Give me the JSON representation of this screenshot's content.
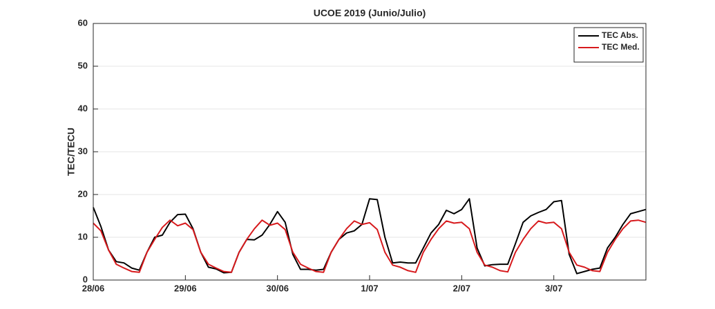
{
  "chart_data": {
    "type": "line",
    "title": "UCOE 2019 (Junio/Julio)",
    "ylabel": "TEC/TECU",
    "x": [
      0,
      0.08333,
      0.16667,
      0.25,
      0.33333,
      0.41667,
      0.5,
      0.58333,
      0.66667,
      0.75,
      0.83333,
      0.91667,
      1,
      1.08333,
      1.16667,
      1.25,
      1.33333,
      1.41667,
      1.5,
      1.58333,
      1.66667,
      1.75,
      1.83333,
      1.91667,
      2,
      2.08333,
      2.16667,
      2.25,
      2.33333,
      2.41667,
      2.5,
      2.58333,
      2.66667,
      2.75,
      2.83333,
      2.91667,
      3,
      3.08333,
      3.16667,
      3.25,
      3.33333,
      3.41667,
      3.5,
      3.58333,
      3.66667,
      3.75,
      3.83333,
      3.91667,
      4,
      4.08333,
      4.16667,
      4.25,
      4.33333,
      4.41667,
      4.5,
      4.58333,
      4.66667,
      4.75,
      4.83333,
      4.91667,
      5,
      5.08333,
      5.16667,
      5.25,
      5.33333,
      5.41667,
      5.5,
      5.58333,
      5.66667,
      5.75,
      5.83333,
      5.91667,
      6
    ],
    "series": [
      {
        "name": "TEC Abs.",
        "color": "#000000",
        "values": [
          17,
          12.5,
          7,
          4.3,
          4,
          2.8,
          2.3,
          6.5,
          10,
          10.5,
          13.5,
          15.3,
          15.4,
          12,
          6.5,
          3,
          2.6,
          1.7,
          1.8,
          6.5,
          9.5,
          9.4,
          10.5,
          13,
          16,
          13.5,
          6,
          2.5,
          2.5,
          2.3,
          2.5,
          6.5,
          9.5,
          11,
          11.5,
          13,
          19,
          18.8,
          10,
          4,
          4.2,
          4,
          4,
          7.5,
          11,
          13,
          16.3,
          15.5,
          16.5,
          19,
          7.5,
          3.3,
          3.6,
          3.7,
          3.7,
          8.5,
          13.5,
          15,
          15.8,
          16.5,
          18.3,
          18.6,
          6,
          1.5,
          2,
          2.5,
          2.8,
          7.5,
          10,
          13,
          15.5,
          16,
          16.5
        ]
      },
      {
        "name": "TEC Med.",
        "color": "#d7191c",
        "values": [
          13.3,
          11.5,
          7,
          3.7,
          2.8,
          2,
          1.8,
          6.5,
          9.5,
          12.3,
          14,
          12.7,
          13.3,
          11.8,
          6.5,
          3.7,
          2.8,
          2,
          1.8,
          6.5,
          9.5,
          12,
          14,
          12.8,
          13.3,
          11.8,
          6.5,
          3.7,
          2.8,
          2,
          1.8,
          6.5,
          9.5,
          12,
          13.8,
          13,
          13.4,
          11.8,
          6.5,
          3.5,
          3,
          2.2,
          1.8,
          6.5,
          9.5,
          12,
          13.8,
          13.3,
          13.5,
          12,
          6.5,
          3.5,
          3,
          2.2,
          1.9,
          6.5,
          9.5,
          12,
          13.8,
          13.3,
          13.5,
          12,
          6.5,
          3.5,
          3,
          2.2,
          2,
          6.5,
          9.5,
          12,
          13.8,
          14,
          13.5
        ]
      }
    ],
    "xlim": [
      0,
      6
    ],
    "xticks": [
      {
        "value": 0,
        "label": "28/06"
      },
      {
        "value": 1,
        "label": "29/06"
      },
      {
        "value": 2,
        "label": "30/06"
      },
      {
        "value": 3,
        "label": "1/07"
      },
      {
        "value": 4,
        "label": "2/07"
      },
      {
        "value": 5,
        "label": "3/07"
      }
    ],
    "ylim": [
      0,
      60
    ],
    "yticks": [
      0,
      10,
      20,
      30,
      40,
      50,
      60
    ],
    "grid": true,
    "legend": "top-right"
  }
}
